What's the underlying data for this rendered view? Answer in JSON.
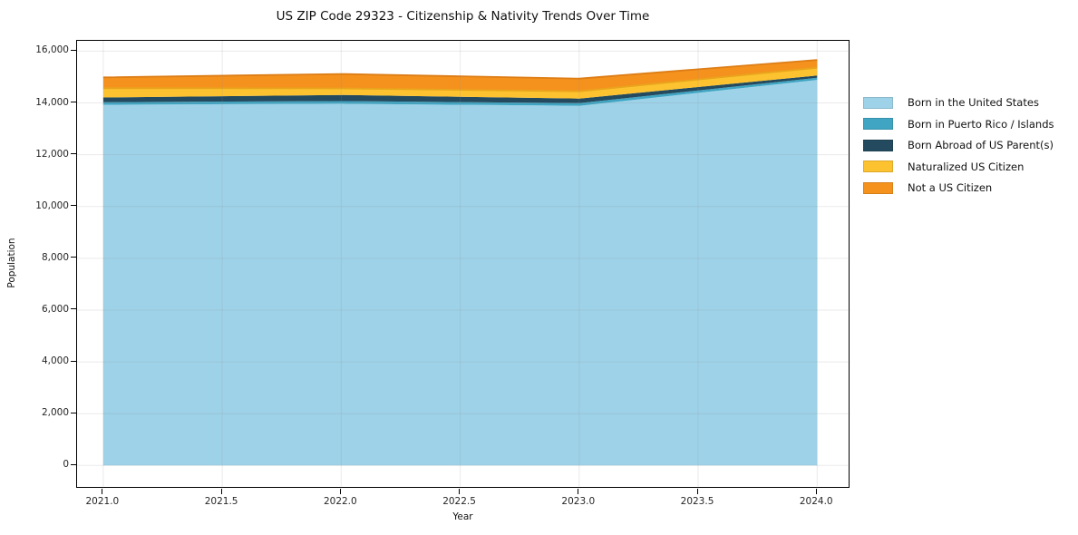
{
  "title": "US ZIP Code 29323 - Citizenship & Nativity Trends Over Time",
  "chart_data": {
    "type": "area",
    "stacked": true,
    "title": "US ZIP Code 29323 - Citizenship & Nativity Trends Over Time",
    "xlabel": "Year",
    "ylabel": "Population",
    "x": [
      2021,
      2022,
      2023,
      2024
    ],
    "series": [
      {
        "name": "Born in the United States",
        "color": "#9ED2E8",
        "values": [
          13930,
          13970,
          13890,
          14890
        ]
      },
      {
        "name": "Born in Puerto Rico / Islands",
        "color": "#3FA5C3",
        "values": [
          100,
          100,
          100,
          80
        ]
      },
      {
        "name": "Born Abroad of US Parent(s)",
        "color": "#234A5E",
        "values": [
          180,
          240,
          180,
          90
        ]
      },
      {
        "name": "Naturalized US Citizen",
        "color": "#FCC230",
        "values": [
          360,
          250,
          280,
          300
        ]
      },
      {
        "name": "Not a US Citizen",
        "color": "#F5921E",
        "values": [
          420,
          560,
          490,
          300
        ]
      }
    ],
    "stack_totals": [
      14990,
      15120,
      14940,
      15660
    ],
    "x_ticks": [
      "2021.0",
      "2021.5",
      "2022.0",
      "2022.5",
      "2023.0",
      "2023.5",
      "2024.0"
    ],
    "y_ticks": [
      "0",
      "2,000",
      "4,000",
      "6,000",
      "8,000",
      "10,000",
      "12,000",
      "14,000",
      "16,000"
    ],
    "xlim": [
      2020.89,
      2024.14
    ],
    "ylim": [
      -900,
      16400
    ],
    "grid": true,
    "grid_color": "rgba(140,140,140,0.18)",
    "spine_color": "#000000",
    "boundary_edge_colors": {
      "naturalized_top": "#E9A51C",
      "not_citizen_top": "#DD7D15"
    },
    "legend_position": "right"
  }
}
